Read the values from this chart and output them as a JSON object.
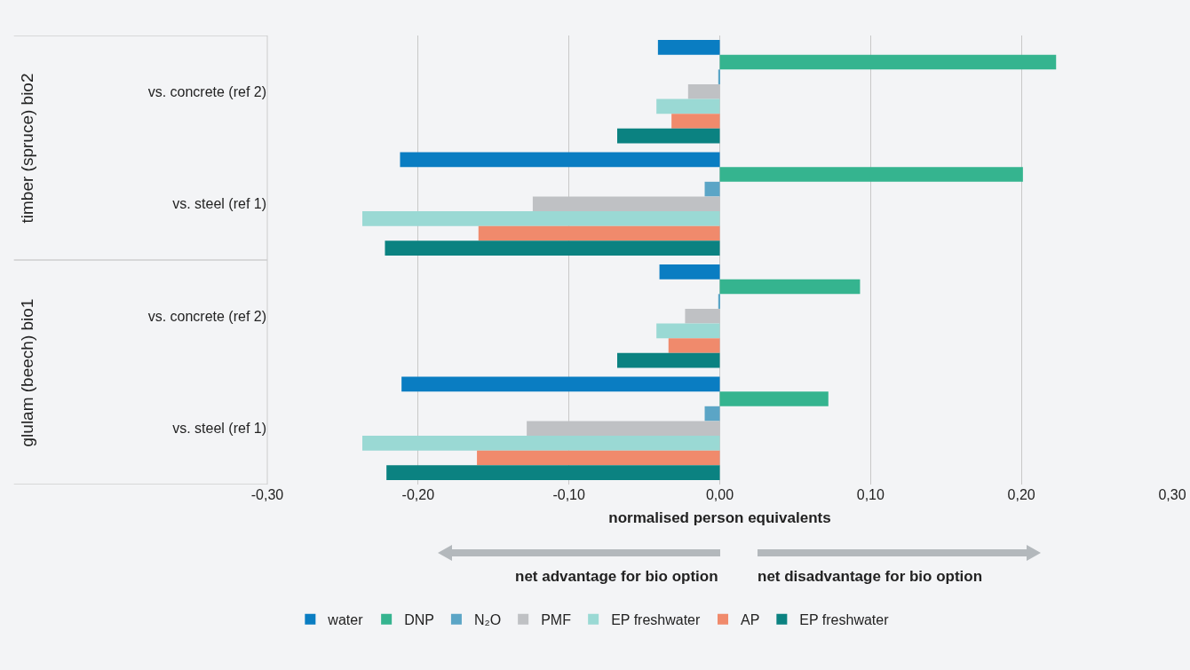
{
  "chart_data": {
    "type": "bar",
    "orientation": "horizontal",
    "xlabel": "normalised person equivalents",
    "categories": [
      "vs. concrete (ref 2)",
      "vs. steel (ref 1)",
      "vs. concrete (ref 2)",
      "vs. steel (ref 1)"
    ],
    "series": [
      {
        "name": "water",
        "color": "#0a7dc2",
        "values": [
          -0.041,
          -0.212,
          -0.04,
          -0.211
        ]
      },
      {
        "name": "DNP",
        "color": "#35b48f",
        "values": [
          0.223,
          0.201,
          0.093,
          0.072
        ]
      },
      {
        "name": "N₂O",
        "color": "#5ba5c6",
        "values": [
          -0.001,
          -0.01,
          -0.001,
          -0.01
        ]
      },
      {
        "name": "PMF",
        "color": "#bfc1c4",
        "values": [
          -0.021,
          -0.124,
          -0.023,
          -0.128
        ]
      },
      {
        "name": "EP freshwater",
        "color": "#9ad9d4",
        "values": [
          -0.042,
          -0.237,
          -0.042,
          -0.237
        ]
      },
      {
        "name": "AP",
        "color": "#f08a6c",
        "values": [
          -0.032,
          -0.16,
          -0.034,
          -0.161
        ]
      },
      {
        "name": "EP freshwater",
        "color": "#0b8281",
        "values": [
          -0.068,
          -0.222,
          -0.068,
          -0.221
        ]
      }
    ],
    "xlim": [
      -0.3,
      0.3
    ],
    "xticks": [
      {
        "value": -0.3,
        "label": "-0,30"
      },
      {
        "value": -0.2,
        "label": "-0,20"
      },
      {
        "value": -0.1,
        "label": "-0,10"
      },
      {
        "value": 0,
        "label": "0,00"
      },
      {
        "value": 0.1,
        "label": "0,10"
      },
      {
        "value": 0.2,
        "label": "0,20"
      },
      {
        "value": 0.3,
        "label": "0,30"
      }
    ],
    "grid": "x",
    "legend": "bottom",
    "annotations": [
      "timber (spruce) bio2",
      "glulam (beech) bio1",
      "net advantage for bio option",
      "net disadvantage for bio option"
    ]
  }
}
